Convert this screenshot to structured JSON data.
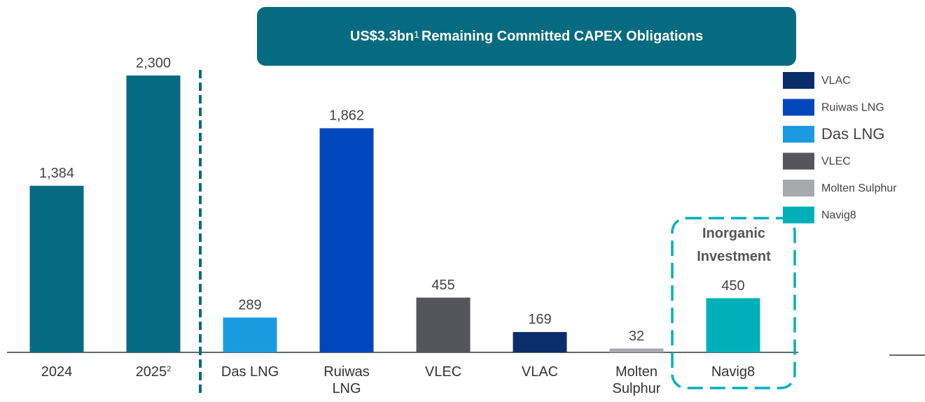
{
  "chart_data": {
    "type": "bar",
    "title": {
      "bold": "US$3.3bn",
      "sup": "1",
      "rest": "Remaining Committed CAPEX Obligations"
    },
    "categories": [
      "2024",
      "2025",
      "Das LNG",
      "Ruiwas LNG",
      "VLEC",
      "VLAC",
      "Molten Sulphur",
      "Navig8"
    ],
    "category_footnotes": [
      null,
      "2",
      null,
      null,
      null,
      null,
      null,
      null
    ],
    "values": [
      1384,
      2300,
      289,
      1862,
      455,
      169,
      32,
      450
    ],
    "value_labels": [
      "1,384",
      "2,300",
      "289",
      "1,862",
      "455",
      "169",
      "32",
      "450"
    ],
    "colors": [
      "#066b80",
      "#066b80",
      "#1a9be0",
      "#0047bb",
      "#54565b",
      "#0b2d6b",
      "#a7a9ac",
      "#00b0b9"
    ],
    "legend": [
      {
        "name": "VLAC",
        "color": "#0b2d6b"
      },
      {
        "name": "Ruiwas LNG",
        "color": "#0047bb"
      },
      {
        "name": "Das LNG",
        "color": "#1a9be0"
      },
      {
        "name": "VLEC",
        "color": "#54565b"
      },
      {
        "name": "Molten Sulphur",
        "color": "#a7a9ac"
      },
      {
        "name": "Navig8",
        "color": "#00b0b9"
      }
    ],
    "highlight_label": "Inorganic Investment"
  }
}
